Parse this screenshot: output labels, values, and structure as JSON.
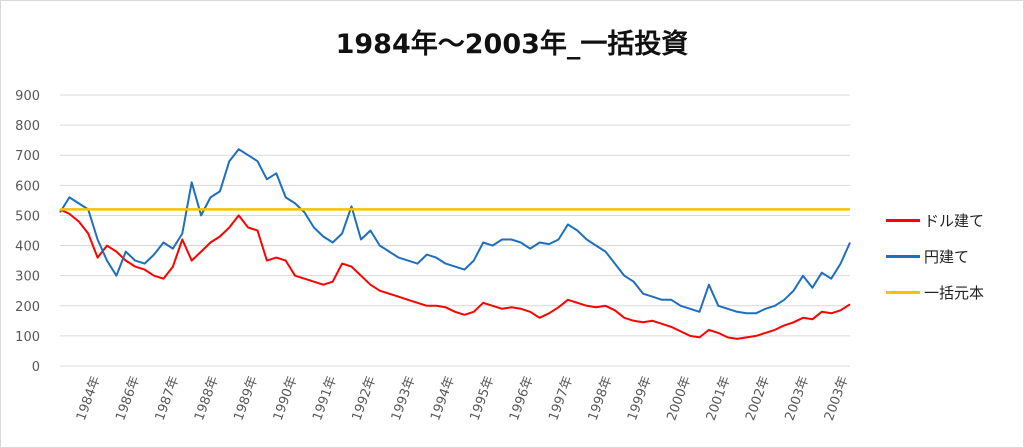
{
  "chart_data": {
    "type": "line",
    "title": "1984年～2003年_一括投資",
    "ylim": [
      0,
      900
    ],
    "y_ticks": [
      0,
      100,
      200,
      300,
      400,
      500,
      600,
      700,
      800,
      900
    ],
    "x_ticks": [
      "1984年",
      "1986年",
      "1987年",
      "1988年",
      "1989年",
      "1990年",
      "1991年",
      "1992年",
      "1993年",
      "1994年",
      "1995年",
      "1996年",
      "1997年",
      "1998年",
      "1999年",
      "2000年",
      "2001年",
      "2002年",
      "2003年",
      "2003年"
    ],
    "grid": true,
    "legend_position": "right",
    "series": [
      {
        "name": "ドル建て",
        "color": "#ff0000",
        "values": [
          520,
          505,
          480,
          440,
          360,
          400,
          380,
          350,
          330,
          320,
          300,
          290,
          330,
          420,
          350,
          380,
          410,
          430,
          460,
          500,
          460,
          450,
          350,
          360,
          350,
          300,
          290,
          280,
          270,
          280,
          340,
          330,
          300,
          270,
          250,
          240,
          230,
          220,
          210,
          200,
          200,
          195,
          180,
          170,
          180,
          210,
          200,
          190,
          195,
          190,
          180,
          160,
          175,
          195,
          220,
          210,
          200,
          195,
          200,
          185,
          160,
          150,
          145,
          150,
          140,
          130,
          115,
          100,
          95,
          120,
          110,
          95,
          90,
          95,
          100,
          110,
          120,
          135,
          145,
          160,
          155,
          180,
          175,
          185,
          205
        ]
      },
      {
        "name": "円建て",
        "color": "#1f6fbf",
        "values": [
          510,
          560,
          540,
          520,
          420,
          350,
          300,
          380,
          350,
          340,
          370,
          410,
          390,
          440,
          610,
          500,
          560,
          580,
          680,
          720,
          700,
          680,
          620,
          640,
          560,
          540,
          510,
          460,
          430,
          410,
          440,
          530,
          420,
          450,
          400,
          380,
          360,
          350,
          340,
          370,
          360,
          340,
          330,
          320,
          350,
          410,
          400,
          420,
          420,
          410,
          390,
          410,
          405,
          420,
          470,
          450,
          420,
          400,
          380,
          340,
          300,
          280,
          240,
          230,
          220,
          220,
          200,
          190,
          180,
          270,
          200,
          190,
          180,
          175,
          175,
          190,
          200,
          220,
          250,
          300,
          260,
          310,
          290,
          340,
          410
        ]
      },
      {
        "name": "一括元本",
        "color": "#ffc000",
        "values": [
          520,
          520
        ]
      }
    ]
  }
}
